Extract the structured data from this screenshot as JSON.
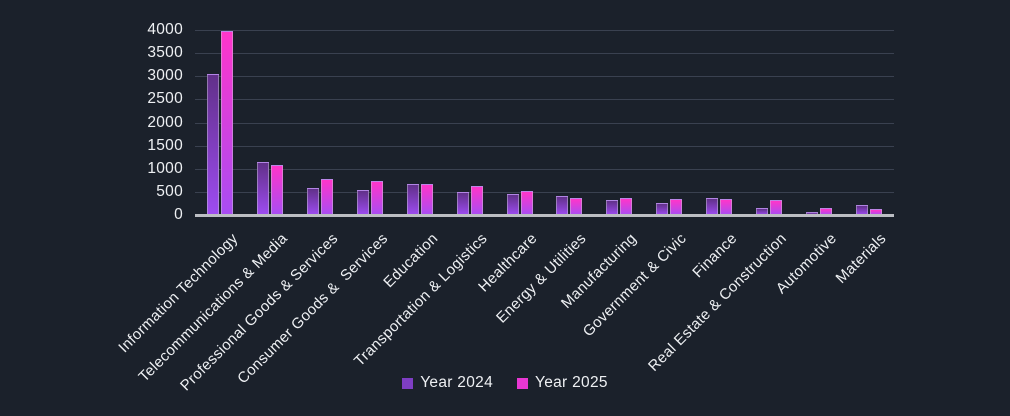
{
  "colors": {
    "background": "#1b212b",
    "gridline": "#3a4150",
    "axis_line": "#bcbec3",
    "text": "#eef0f3"
  },
  "chart_data": {
    "type": "bar",
    "title": "",
    "xlabel": "",
    "ylabel": "",
    "categories": [
      "Information Technology",
      "Telecommunications & Media",
      "Professional Goods & Services",
      "Consumer Goods &  Services",
      "Education",
      "Transportation & Logistics",
      "Healthcare",
      "Energy & Utilities",
      "Manufacturing",
      "Government & Civic",
      "Finance",
      "Real Estate & Construction",
      "Automotive",
      "Materials"
    ],
    "series": [
      {
        "name": "Year 2024",
        "values": [
          3050,
          1150,
          575,
          545,
          665,
          495,
          445,
          400,
          320,
          250,
          360,
          160,
          75,
          225
        ],
        "legend_color": "#7e3ec4",
        "gradient_top": "#613089",
        "gradient_bottom": "#9e4cf2"
      },
      {
        "name": "Year 2025",
        "values": [
          3980,
          1080,
          780,
          745,
          680,
          620,
          515,
          370,
          375,
          355,
          350,
          320,
          155,
          135
        ],
        "legend_color": "#e837d2",
        "gradient_top": "#ff35ca",
        "gradient_bottom": "#a84df3"
      }
    ],
    "y_axis": {
      "min": 0,
      "max": 4000,
      "step": 500,
      "tick_labels": [
        "0",
        "500",
        "1000",
        "1500",
        "2000",
        "2500",
        "3000",
        "3500",
        "4000"
      ]
    },
    "x_label_rotation_deg": -45,
    "grid": true,
    "legend_position": "bottom"
  }
}
